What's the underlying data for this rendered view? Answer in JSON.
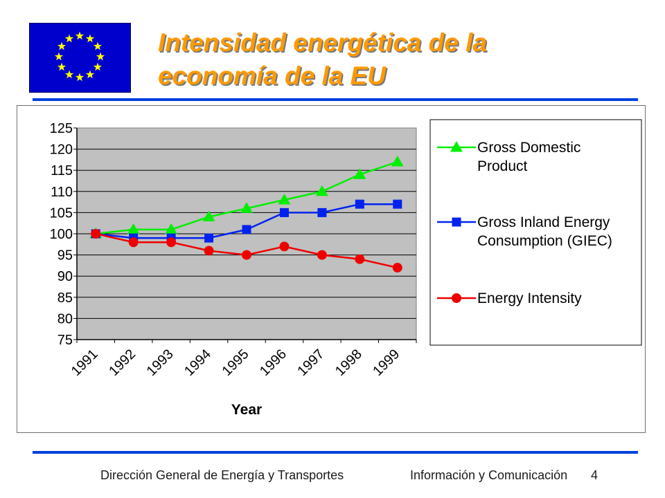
{
  "slide": {
    "title_line1": "Intensidad energética de la",
    "title_line2": "economía de la EU",
    "flag_icon": "eu-flag-icon",
    "footer_left": "Dirección General de Energía y Transportes",
    "footer_right": "Información y Comunicación",
    "page_number": "4",
    "colors": {
      "title": "#ff9900",
      "rule": "#0040e0",
      "flag_blue": "#0000cc",
      "flag_star": "#ffff00"
    }
  },
  "chart_data": {
    "type": "line",
    "categories": [
      "1991",
      "1992",
      "1993",
      "1994",
      "1995",
      "1996",
      "1997",
      "1998",
      "1999"
    ],
    "xlabel": "Year",
    "ylabel": "",
    "ylim": [
      75,
      125
    ],
    "yticks": [
      75,
      80,
      85,
      90,
      95,
      100,
      105,
      110,
      115,
      120,
      125
    ],
    "grid": true,
    "plot_background": "#c0c0c0",
    "legend_position": "right",
    "series": [
      {
        "name": "Gross Domestic Product",
        "legend_lines": [
          "Gross Domestic",
          "Product"
        ],
        "color": "#00ee00",
        "marker": "triangle",
        "values": [
          100,
          101,
          101,
          104,
          106,
          108,
          110,
          114,
          117
        ]
      },
      {
        "name": "Gross Inland Energy Consumption (GIEC)",
        "legend_lines": [
          "Gross Inland Energy",
          "Consumption (GIEC)"
        ],
        "color": "#0022ee",
        "marker": "square",
        "values": [
          100,
          99,
          99,
          99,
          101,
          105,
          105,
          107,
          107
        ]
      },
      {
        "name": "Energy Intensity",
        "legend_lines": [
          "Energy Intensity"
        ],
        "color": "#ee0000",
        "marker": "circle",
        "values": [
          100,
          98,
          98,
          96,
          95,
          97,
          95,
          94,
          92
        ]
      }
    ]
  }
}
